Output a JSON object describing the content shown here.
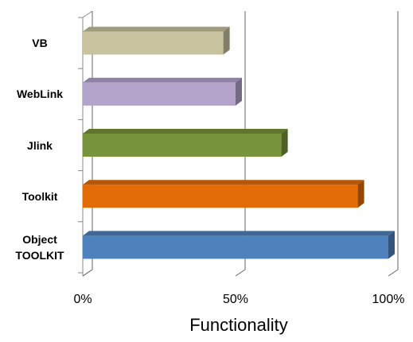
{
  "chart_data": {
    "type": "bar3d",
    "orientation": "horizontal",
    "categories": [
      "VB",
      "WebLink",
      "Jlink",
      "Toolkit",
      "Object TOOLKIT"
    ],
    "values": [
      46,
      50,
      65,
      90,
      100
    ],
    "colors": [
      "#c8c29e",
      "#b4a3cb",
      "#77933c",
      "#e36c09",
      "#4f81bd"
    ],
    "xlim": [
      0,
      100
    ],
    "xticks": [
      {
        "value": 0,
        "label": "0%"
      },
      {
        "value": 50,
        "label": "50%"
      },
      {
        "value": 100,
        "label": "100%"
      }
    ],
    "xlabel": "Functionality",
    "grid": true
  }
}
